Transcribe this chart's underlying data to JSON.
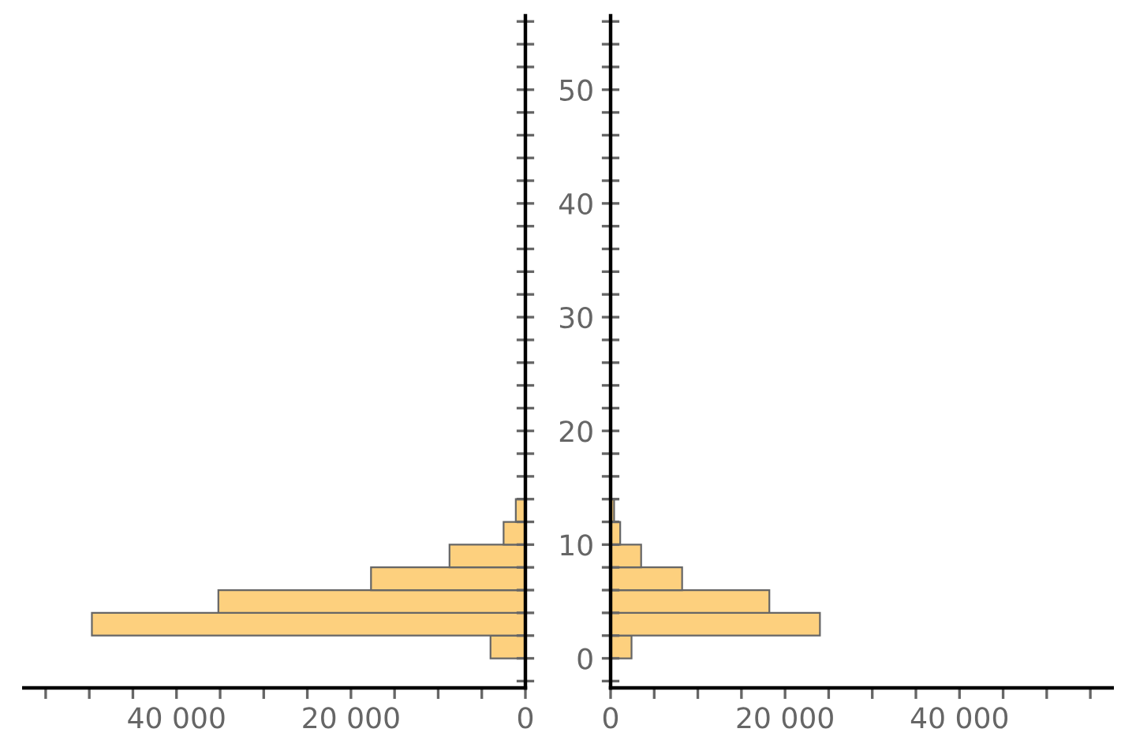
{
  "chart_data": [
    {
      "type": "histogram",
      "orientation": "horizontal",
      "bins": [
        0,
        2,
        4,
        6,
        8,
        10,
        12,
        14
      ],
      "values": [
        4000,
        49700,
        35200,
        17700,
        8700,
        2500,
        1100
      ],
      "color": "#fdd07e",
      "xlim": [
        57500,
        0
      ],
      "xticks": [
        {
          "value": 55000,
          "label": null
        },
        {
          "value": 50000,
          "label": null
        },
        {
          "value": 45000,
          "label": null
        },
        {
          "value": 40000,
          "label": "40 000"
        },
        {
          "value": 35000,
          "label": null
        },
        {
          "value": 30000,
          "label": null
        },
        {
          "value": 25000,
          "label": null
        },
        {
          "value": 20000,
          "label": "20 000"
        },
        {
          "value": 15000,
          "label": null
        },
        {
          "value": 10000,
          "label": null
        },
        {
          "value": 5000,
          "label": null
        },
        0
      ],
      "ylim": [
        -2.6,
        56.5
      ],
      "yticks": [
        {
          "value": -2,
          "label": null
        },
        0,
        2,
        4,
        6,
        8,
        10,
        12,
        14,
        16,
        18,
        20,
        22,
        24,
        26,
        28,
        30,
        32,
        34,
        36,
        38,
        40,
        42,
        44,
        46,
        48,
        50,
        52,
        54,
        56
      ],
      "tick_labels": "x",
      "grid": false
    },
    {
      "type": "histogram",
      "orientation": "horizontal",
      "bins": [
        0,
        2,
        4,
        6,
        8,
        10,
        12,
        14
      ],
      "values": [
        2400,
        24000,
        18200,
        8200,
        3500,
        1100,
        400
      ],
      "color": "#fdd07e",
      "xlim": [
        0,
        57500
      ],
      "xticks": [
        0,
        {
          "value": 5000,
          "label": null
        },
        {
          "value": 10000,
          "label": null
        },
        {
          "value": 15000,
          "label": null
        },
        {
          "value": 20000,
          "label": "20 000"
        },
        {
          "value": 25000,
          "label": null
        },
        {
          "value": 30000,
          "label": null
        },
        {
          "value": 35000,
          "label": null
        },
        {
          "value": 40000,
          "label": "40 000"
        },
        {
          "value": 45000,
          "label": null
        },
        {
          "value": 50000,
          "label": null
        },
        {
          "value": 55000,
          "label": null
        }
      ],
      "ylim": [
        -2.6,
        56.5
      ],
      "yticks": [
        {
          "value": -2,
          "label": null
        },
        0,
        {
          "value": 2,
          "label": null
        },
        {
          "value": 4,
          "label": null
        },
        {
          "value": 6,
          "label": null
        },
        {
          "value": 8,
          "label": null
        },
        10,
        {
          "value": 12,
          "label": null
        },
        {
          "value": 14,
          "label": null
        },
        {
          "value": 16,
          "label": null
        },
        {
          "value": 18,
          "label": null
        },
        20,
        {
          "value": 22,
          "label": null
        },
        {
          "value": 24,
          "label": null
        },
        {
          "value": 26,
          "label": null
        },
        {
          "value": 28,
          "label": null
        },
        30,
        {
          "value": 32,
          "label": null
        },
        {
          "value": 34,
          "label": null
        },
        {
          "value": 36,
          "label": null
        },
        {
          "value": 38,
          "label": null
        },
        40,
        {
          "value": 42,
          "label": null
        },
        {
          "value": 44,
          "label": null
        },
        {
          "value": 46,
          "label": null
        },
        {
          "value": 48,
          "label": null
        },
        50,
        {
          "value": 52,
          "label": null
        },
        {
          "value": 54,
          "label": null
        },
        {
          "value": 56,
          "label": null
        }
      ],
      "grid": false
    }
  ]
}
